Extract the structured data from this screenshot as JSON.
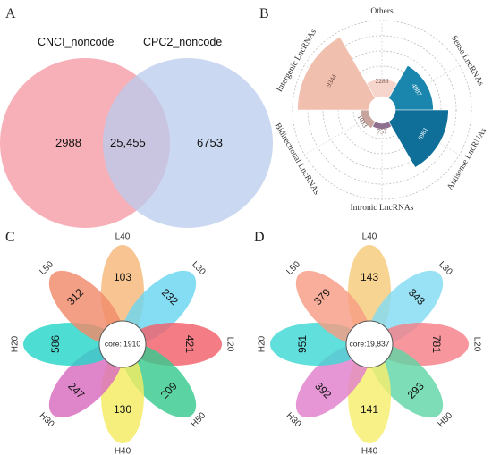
{
  "panels": {
    "A": "A",
    "B": "B",
    "C": "C",
    "D": "D"
  },
  "colors": {
    "venn_left": "#f6a6b0",
    "venn_right": "#b9cbee",
    "radial_dark": "#1a7fa6",
    "radial_light": "#f1bfae"
  },
  "chart_data": [
    {
      "panel": "A",
      "type": "venn",
      "sets": [
        "CNCI_noncode",
        "CPC2_noncode"
      ],
      "values": {
        "left_only": "2988",
        "intersection": "25,455",
        "right_only": "6753"
      }
    },
    {
      "panel": "B",
      "type": "radial_bar",
      "categories": [
        {
          "name": "Others",
          "value": 2283,
          "label": "2283",
          "color": "#f6d6cc"
        },
        {
          "name": "Sense LncRNAs",
          "value": 4987,
          "label": "4987",
          "color": "#1a86ad"
        },
        {
          "name": "Antisense LncRNAs",
          "value": 6981,
          "label": "6981",
          "color": "#0f6f98"
        },
        {
          "name": "Intronic LncRNAs",
          "value": 757,
          "label": "757",
          "color": "#8f6f8f"
        },
        {
          "name": "Bidirectional LncRNAs",
          "value": 1033,
          "label": "1033",
          "color": "#c8a59c"
        },
        {
          "name": "Intergenic LncRNAs",
          "value": 9344,
          "label": "9344",
          "color": "#f1bfae"
        }
      ]
    },
    {
      "panel": "C",
      "type": "flower",
      "core": "core: 1910",
      "petals": [
        {
          "name": "L40",
          "value": "103",
          "color": "#f7b87a"
        },
        {
          "name": "L30",
          "value": "232",
          "color": "#6ad6f0"
        },
        {
          "name": "L20",
          "value": "421",
          "color": "#f25f6a"
        },
        {
          "name": "H50",
          "value": "209",
          "color": "#38c98e"
        },
        {
          "name": "H40",
          "value": "130",
          "color": "#f4ec62"
        },
        {
          "name": "H30",
          "value": "247",
          "color": "#d86bc0"
        },
        {
          "name": "H20",
          "value": "586",
          "color": "#26d6c8"
        },
        {
          "name": "L50",
          "value": "312",
          "color": "#f08a6a"
        }
      ]
    },
    {
      "panel": "D",
      "type": "flower",
      "core": "core:19,837",
      "petals": [
        {
          "name": "L40",
          "value": "143",
          "color": "#f7ca7a"
        },
        {
          "name": "L30",
          "value": "343",
          "color": "#82dcf4"
        },
        {
          "name": "L20",
          "value": "781",
          "color": "#f57f86"
        },
        {
          "name": "H50",
          "value": "293",
          "color": "#5fd6a6"
        },
        {
          "name": "H40",
          "value": "141",
          "color": "#f6ee6e"
        },
        {
          "name": "H30",
          "value": "392",
          "color": "#e07fcc"
        },
        {
          "name": "H20",
          "value": "951",
          "color": "#3ed8d4"
        },
        {
          "name": "L50",
          "value": "379",
          "color": "#f69c84"
        }
      ]
    }
  ]
}
